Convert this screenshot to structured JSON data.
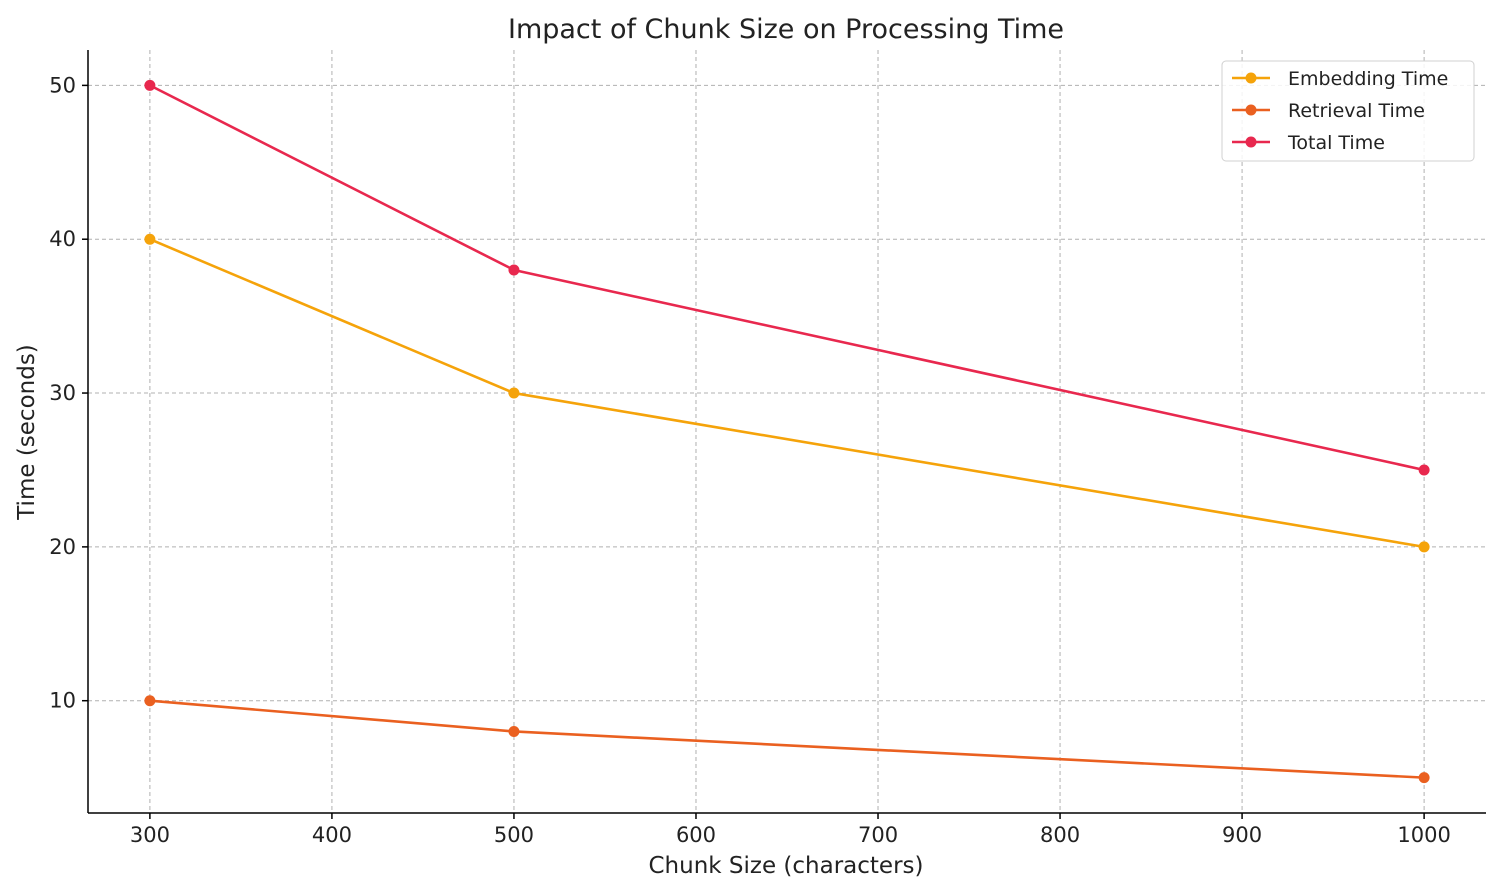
{
  "chart_data": {
    "type": "line",
    "title": "Impact of Chunk Size on Processing Time",
    "xlabel": "Chunk Size (characters)",
    "ylabel": "Time (seconds)",
    "x": [
      300,
      500,
      1000
    ],
    "xlim": [
      266,
      1034
    ],
    "ylim": [
      2.7,
      52.3
    ],
    "xticks": [
      300,
      400,
      500,
      600,
      700,
      800,
      900,
      1000
    ],
    "yticks": [
      10,
      20,
      30,
      40,
      50
    ],
    "grid": true,
    "legend_position": "top-right",
    "series": [
      {
        "name": "Embedding Time",
        "values": [
          40,
          30,
          20
        ],
        "color": "#f5a30a"
      },
      {
        "name": "Retrieval Time",
        "values": [
          10,
          8,
          5
        ],
        "color": "#ea6020"
      },
      {
        "name": "Total Time",
        "values": [
          50,
          38,
          25
        ],
        "color": "#e8284e"
      }
    ]
  }
}
